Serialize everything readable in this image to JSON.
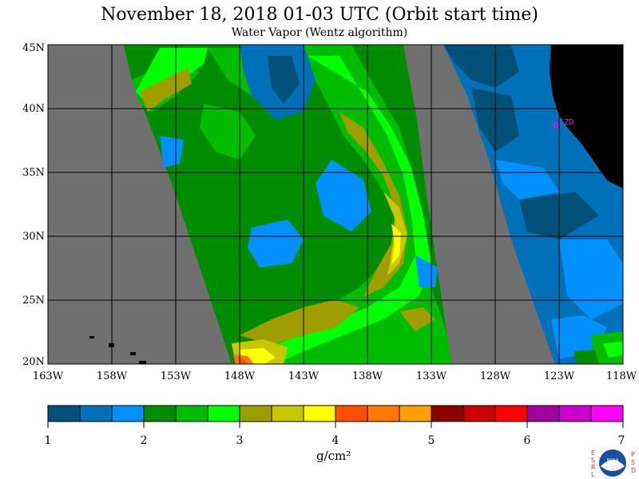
{
  "header": {
    "title": "November 18, 2018  01-03 UTC  (Orbit start time)",
    "subtitle": "Water Vapor (Wentz algorithm)"
  },
  "map": {
    "lat_labels": [
      "45N",
      "40N",
      "35N",
      "30N",
      "25N",
      "20N"
    ],
    "lon_labels": [
      "163W",
      "158W",
      "153W",
      "148W",
      "143W",
      "138W",
      "133W",
      "128W",
      "123W",
      "118W"
    ],
    "station_label": "CZD",
    "colors": {
      "no_data": "#707070",
      "land": "#000000",
      "station": "#ff00ff"
    }
  },
  "colorbar": {
    "tick_labels": [
      "1",
      "2",
      "3",
      "4",
      "5",
      "6",
      "7"
    ],
    "units": "g/cm²",
    "colors": [
      "#00507a",
      "#0070b8",
      "#0090ff",
      "#008c00",
      "#00bc00",
      "#00ff00",
      "#9e9e00",
      "#c8c800",
      "#ffff00",
      "#ff5000",
      "#ff7800",
      "#ffa000",
      "#8c0000",
      "#c80000",
      "#ff0000",
      "#a000a0",
      "#cc00cc",
      "#ff00ff"
    ]
  },
  "logo": {
    "left_letters": "ESRL",
    "right_letters": "PSD",
    "center_text": "NOAA"
  }
}
